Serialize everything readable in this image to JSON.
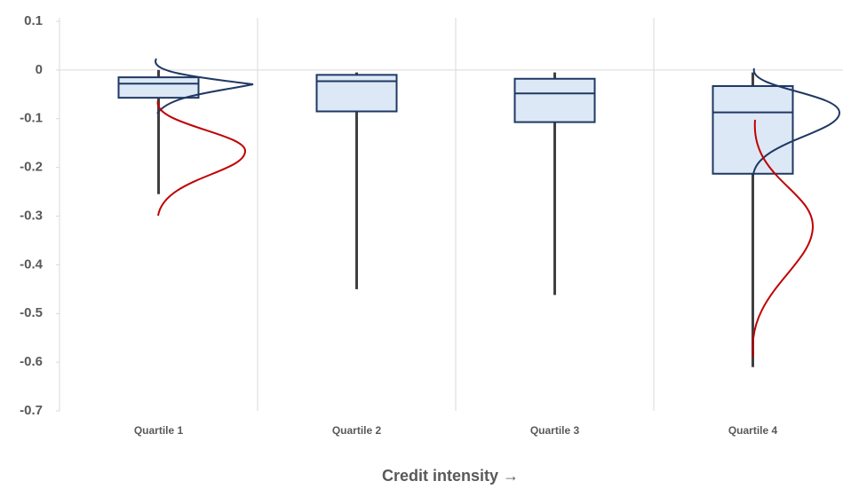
{
  "chart_data": {
    "type": "box",
    "x_label": "Credit intensity →",
    "categories": [
      "Quartile 1",
      "Quartile 2",
      "Quartile 3",
      "Quartile 4"
    ],
    "boxes": [
      {
        "whisker_high": 0,
        "q3": -0.015,
        "median": -0.028,
        "q1": -0.057,
        "whisker_low": -0.255
      },
      {
        "whisker_high": -0.005,
        "q3": -0.01,
        "median": -0.023,
        "q1": -0.085,
        "whisker_low": -0.45
      },
      {
        "whisker_high": -0.005,
        "q3": -0.018,
        "median": -0.048,
        "q1": -0.107,
        "whisker_low": -0.462
      },
      {
        "whisker_high": -0.005,
        "q3": -0.033,
        "median": -0.087,
        "q1": -0.213,
        "whisker_low": -0.61
      }
    ],
    "color": "#dce8f5",
    "edge_color": "#1f3864",
    "whisker_color": "#404040",
    "ylim": [
      -0.7,
      0.1
    ],
    "yticks": [
      0.1,
      0,
      -0.1,
      -0.2,
      -0.3,
      -0.4,
      -0.5,
      -0.6,
      -0.7
    ]
  }
}
